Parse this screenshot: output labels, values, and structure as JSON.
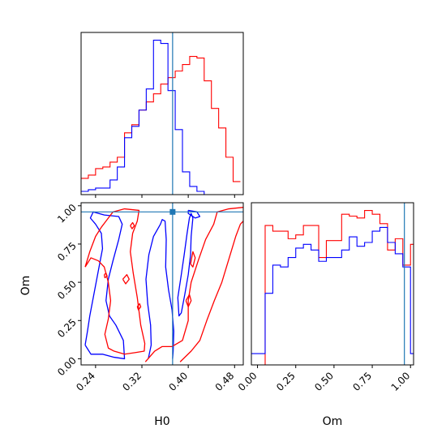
{
  "chart_data": {
    "type": "corner",
    "parameters": [
      "H0",
      "Om"
    ],
    "truth": {
      "H0": 0.373,
      "Om": 0.96
    },
    "colors": {
      "series_a": "#ff0000",
      "series_b": "#0000ff",
      "truth": "#1f77b4",
      "frame": "#000000"
    },
    "panels": {
      "h0_hist": {
        "type": "histogram",
        "xlim": [
          0.215,
          0.495
        ],
        "xticks": [
          0.24,
          0.32,
          0.4,
          0.48
        ],
        "bins": [
          0.215,
          0.2275,
          0.24,
          0.2525,
          0.265,
          0.2775,
          0.29,
          0.3025,
          0.315,
          0.3275,
          0.34,
          0.3525,
          0.365,
          0.3775,
          0.39,
          0.4025,
          0.415,
          0.4275,
          0.44,
          0.4525,
          0.465,
          0.4775,
          0.49
        ],
        "series": [
          {
            "color_key": "series_a",
            "counts": [
              10,
              12,
              16,
              17,
              20,
              23,
              38,
              43,
              52,
              57,
              62,
              68,
              72,
              76,
              80,
              85,
              84,
              70,
              53,
              41,
              23,
              8
            ]
          },
          {
            "color_key": "series_b",
            "counts": [
              2,
              3,
              4,
              4,
              9,
              17,
              35,
              42,
              52,
              65,
              95,
              93,
              64,
              40,
              14,
              5,
              2,
              0,
              0,
              0,
              0,
              0
            ]
          }
        ]
      },
      "om_hist": {
        "type": "histogram",
        "xlim": [
          -0.04,
          1.02
        ],
        "xticks": [
          0.0,
          0.25,
          0.5,
          0.75,
          1.0
        ],
        "tick_labels": [
          "0.00",
          "0.25",
          "0.50",
          "0.75",
          "1.00"
        ],
        "bins": [
          -0.04,
          0.0,
          0.05,
          0.1,
          0.15,
          0.2,
          0.25,
          0.3,
          0.35,
          0.4,
          0.45,
          0.5,
          0.55,
          0.6,
          0.65,
          0.7,
          0.75,
          0.8,
          0.85,
          0.9,
          0.95,
          1.0,
          1.02
        ],
        "series": [
          {
            "color_key": "series_a",
            "counts": [
              0,
              0,
              74,
              71,
              71,
              67,
              69,
              74,
              74,
              57,
              66,
              66,
              80,
              79,
              78,
              82,
              80,
              75,
              61,
              67,
              53,
              64
            ]
          },
          {
            "color_key": "series_b",
            "counts": [
              6,
              6,
              38,
              53,
              52,
              57,
              62,
              64,
              61,
              55,
              57,
              57,
              61,
              68,
              63,
              65,
              71,
              73,
              65,
              59,
              52,
              6
            ]
          }
        ]
      },
      "joint": {
        "type": "contour",
        "xlim": [
          0.215,
          0.495
        ],
        "ylim": [
          -0.04,
          1.02
        ],
        "xticks": [
          0.24,
          0.32,
          0.4,
          0.48
        ],
        "yticks": [
          0.0,
          0.25,
          0.5,
          0.75,
          1.0
        ],
        "ytick_labels": [
          "0.00",
          "0.25",
          "0.50",
          "0.75",
          "1.00"
        ],
        "contours": [
          {
            "color_key": "series_b",
            "points": [
              [
                0.331,
                0.0
              ],
              [
                0.336,
                0.09
              ],
              [
                0.335,
                0.22
              ],
              [
                0.33,
                0.36
              ],
              [
                0.327,
                0.52
              ],
              [
                0.332,
                0.68
              ],
              [
                0.34,
                0.8
              ],
              [
                0.352,
                0.88
              ],
              [
                0.355,
                0.91
              ],
              [
                0.36,
                0.9
              ],
              [
                0.362,
                0.78
              ],
              [
                0.361,
                0.6
              ],
              [
                0.366,
                0.45
              ],
              [
                0.372,
                0.32
              ],
              [
                0.375,
                0.18
              ],
              [
                0.374,
                0.05
              ],
              [
                0.373,
                0.0
              ]
            ]
          },
          {
            "color_key": "series_b",
            "points": [
              [
                0.222,
                0.09
              ],
              [
                0.232,
                0.03
              ],
              [
                0.252,
                0.03
              ],
              [
                0.272,
                0.01
              ],
              [
                0.29,
                0.0
              ],
              [
                0.288,
                0.12
              ],
              [
                0.275,
                0.22
              ],
              [
                0.264,
                0.28
              ],
              [
                0.258,
                0.38
              ],
              [
                0.262,
                0.52
              ],
              [
                0.27,
                0.64
              ],
              [
                0.28,
                0.78
              ],
              [
                0.286,
                0.88
              ],
              [
                0.28,
                0.93
              ],
              [
                0.255,
                0.94
              ],
              [
                0.236,
                0.96
              ],
              [
                0.231,
                0.92
              ],
              [
                0.24,
                0.88
              ],
              [
                0.25,
                0.82
              ],
              [
                0.252,
                0.72
              ],
              [
                0.246,
                0.6
              ],
              [
                0.24,
                0.48
              ],
              [
                0.235,
                0.38
              ],
              [
                0.23,
                0.28
              ],
              [
                0.226,
                0.18
              ],
              [
                0.222,
                0.09
              ]
            ]
          },
          {
            "color_key": "series_b",
            "points": [
              [
                0.382,
                0.4
              ],
              [
                0.388,
                0.55
              ],
              [
                0.393,
                0.68
              ],
              [
                0.398,
                0.82
              ],
              [
                0.402,
                0.92
              ],
              [
                0.405,
                0.95
              ],
              [
                0.408,
                0.92
              ],
              [
                0.405,
                0.8
              ],
              [
                0.404,
                0.68
              ],
              [
                0.4,
                0.55
              ],
              [
                0.394,
                0.42
              ],
              [
                0.388,
                0.3
              ],
              [
                0.384,
                0.28
              ],
              [
                0.382,
                0.4
              ]
            ]
          },
          {
            "color_key": "series_b",
            "points": [
              [
                0.4,
                0.97
              ],
              [
                0.415,
                0.96
              ],
              [
                0.42,
                0.93
              ],
              [
                0.412,
                0.92
              ],
              [
                0.4,
                0.95
              ],
              [
                0.4,
                0.97
              ]
            ]
          },
          {
            "color_key": "series_a",
            "points": [
              [
                0.222,
                0.6
              ],
              [
                0.23,
                0.7
              ],
              [
                0.24,
                0.8
              ],
              [
                0.25,
                0.86
              ],
              [
                0.262,
                0.92
              ],
              [
                0.27,
                0.96
              ],
              [
                0.29,
                0.98
              ],
              [
                0.315,
                0.97
              ],
              [
                0.312,
                0.9
              ],
              [
                0.304,
                0.82
              ],
              [
                0.3,
                0.7
              ],
              [
                0.305,
                0.56
              ],
              [
                0.312,
                0.4
              ],
              [
                0.318,
                0.22
              ],
              [
                0.325,
                0.1
              ],
              [
                0.324,
                0.05
              ],
              [
                0.308,
                0.04
              ],
              [
                0.29,
                0.03
              ],
              [
                0.272,
                0.05
              ],
              [
                0.262,
                0.07
              ],
              [
                0.256,
                0.16
              ],
              [
                0.262,
                0.26
              ],
              [
                0.266,
                0.38
              ],
              [
                0.262,
                0.5
              ],
              [
                0.255,
                0.6
              ],
              [
                0.245,
                0.64
              ],
              [
                0.232,
                0.66
              ],
              [
                0.222,
                0.6
              ]
            ]
          },
          {
            "color_key": "series_a",
            "points": [
              [
                0.326,
                -0.02
              ],
              [
                0.342,
                0.05
              ],
              [
                0.355,
                0.08
              ],
              [
                0.372,
                0.08
              ],
              [
                0.39,
                0.12
              ],
              [
                0.4,
                0.25
              ],
              [
                0.4,
                0.38
              ],
              [
                0.405,
                0.5
              ],
              [
                0.418,
                0.65
              ],
              [
                0.43,
                0.78
              ],
              [
                0.444,
                0.88
              ],
              [
                0.45,
                0.96
              ],
              [
                0.47,
                0.98
              ],
              [
                0.495,
                0.99
              ]
            ]
          },
          {
            "color_key": "series_a",
            "points": [
              [
                0.386,
                -0.02
              ],
              [
                0.405,
                0.05
              ],
              [
                0.42,
                0.12
              ],
              [
                0.432,
                0.25
              ],
              [
                0.445,
                0.38
              ],
              [
                0.458,
                0.5
              ],
              [
                0.47,
                0.65
              ],
              [
                0.482,
                0.8
              ],
              [
                0.49,
                0.88
              ],
              [
                0.495,
                0.9
              ]
            ]
          },
          {
            "color_key": "series_a",
            "points": [
              [
                0.287,
                0.52
              ],
              [
                0.294,
                0.55
              ],
              [
                0.298,
                0.52
              ],
              [
                0.292,
                0.49
              ],
              [
                0.287,
                0.52
              ]
            ]
          },
          {
            "color_key": "series_a",
            "points": [
              [
                0.255,
                0.55
              ],
              [
                0.258,
                0.56
              ],
              [
                0.26,
                0.54
              ],
              [
                0.256,
                0.53
              ],
              [
                0.255,
                0.55
              ]
            ]
          },
          {
            "color_key": "series_a",
            "points": [
              [
                0.3,
                0.87
              ],
              [
                0.304,
                0.89
              ],
              [
                0.307,
                0.87
              ],
              [
                0.303,
                0.85
              ],
              [
                0.3,
                0.87
              ]
            ]
          },
          {
            "color_key": "series_a",
            "points": [
              [
                0.312,
                0.34
              ],
              [
                0.316,
                0.36
              ],
              [
                0.318,
                0.34
              ],
              [
                0.314,
                0.32
              ],
              [
                0.312,
                0.34
              ]
            ]
          },
          {
            "color_key": "series_a",
            "points": [
              [
                0.396,
                0.38
              ],
              [
                0.402,
                0.42
              ],
              [
                0.405,
                0.38
              ],
              [
                0.4,
                0.34
              ],
              [
                0.396,
                0.38
              ]
            ]
          },
          {
            "color_key": "series_a",
            "points": [
              [
                0.404,
                0.62
              ],
              [
                0.408,
                0.7
              ],
              [
                0.412,
                0.66
              ],
              [
                0.408,
                0.6
              ],
              [
                0.404,
                0.62
              ]
            ]
          }
        ]
      }
    },
    "axis_labels": {
      "x_left": "H0",
      "x_right": "Om",
      "y_joint": "Om"
    }
  }
}
